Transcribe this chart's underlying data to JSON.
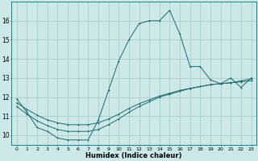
{
  "xlabel": "Humidex (Indice chaleur)",
  "bg_color": "#cce8e8",
  "grid_color": "#aacccc",
  "line_color": "#1a6b6b",
  "xlim": [
    -0.5,
    23.5
  ],
  "ylim": [
    9.5,
    17.0
  ],
  "xticks": [
    0,
    1,
    2,
    3,
    4,
    5,
    6,
    7,
    8,
    9,
    10,
    11,
    12,
    13,
    14,
    15,
    16,
    17,
    18,
    19,
    20,
    21,
    22,
    23
  ],
  "yticks": [
    10,
    11,
    12,
    13,
    14,
    15,
    16
  ],
  "curve1_x": [
    0,
    1,
    2,
    3,
    4,
    5,
    6,
    7,
    8,
    9,
    10,
    11,
    12,
    13,
    14,
    15,
    16,
    17,
    18,
    19,
    20,
    21,
    22,
    23
  ],
  "curve1_y": [
    11.9,
    11.2,
    10.4,
    10.2,
    9.85,
    9.75,
    9.75,
    9.75,
    10.8,
    12.35,
    13.9,
    15.0,
    15.85,
    16.0,
    16.0,
    16.55,
    15.3,
    13.6,
    13.6,
    12.9,
    12.7,
    13.0,
    12.5,
    13.0
  ],
  "curve2_x": [
    0,
    1,
    2,
    3,
    4,
    5,
    6,
    7,
    8,
    9,
    10,
    11,
    12,
    13,
    14,
    15,
    16,
    17,
    18,
    19,
    20,
    21,
    22,
    23
  ],
  "curve2_y": [
    11.5,
    11.1,
    10.75,
    10.5,
    10.3,
    10.2,
    10.2,
    10.2,
    10.3,
    10.55,
    10.85,
    11.2,
    11.5,
    11.75,
    12.0,
    12.15,
    12.3,
    12.45,
    12.55,
    12.65,
    12.7,
    12.75,
    12.8,
    12.85
  ],
  "curve3_x": [
    0,
    1,
    2,
    3,
    4,
    5,
    6,
    7,
    8,
    9,
    10,
    11,
    12,
    13,
    14,
    15,
    16,
    17,
    18,
    19,
    20,
    21,
    22,
    23
  ],
  "curve3_y": [
    11.7,
    11.35,
    11.05,
    10.8,
    10.65,
    10.55,
    10.55,
    10.55,
    10.65,
    10.85,
    11.1,
    11.4,
    11.65,
    11.85,
    12.05,
    12.2,
    12.35,
    12.45,
    12.55,
    12.65,
    12.7,
    12.75,
    12.85,
    12.95
  ]
}
